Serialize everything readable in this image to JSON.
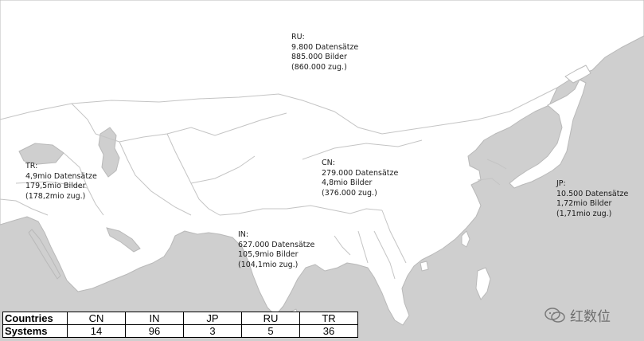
{
  "labels": [
    {
      "code": "RU:",
      "records": "9.800 Datensätze",
      "images": "885.000 Bilder",
      "faces": "(860.000 zug.)"
    },
    {
      "code": "TR:",
      "records": "4,9mio Datensätze",
      "images": "179,5mio Bilder",
      "faces": "(178,2mio zug.)"
    },
    {
      "code": "CN:",
      "records": "279.000 Datensätze",
      "images": "4,8mio Bilder",
      "faces": "(376.000 zug.)"
    },
    {
      "code": "JP:",
      "records": "10.500 Datensätze",
      "images": "1,72mio Bilder",
      "faces": "(1,71mio zug.)"
    },
    {
      "code": "IN:",
      "records": "627.000 Datensätze",
      "images": "105,9mio Bilder",
      "faces": "(104,1mio zug.)"
    }
  ],
  "table": {
    "header_countries": "Countries",
    "header_systems": "Systems",
    "countries": [
      "CN",
      "IN",
      "JP",
      "RU",
      "TR"
    ],
    "systems": [
      "14",
      "96",
      "3",
      "5",
      "36"
    ]
  },
  "watermark": "红数位",
  "colors": {
    "land": "#ffffff",
    "sea": "#cfcfcf",
    "border": "#b9b9b9"
  }
}
